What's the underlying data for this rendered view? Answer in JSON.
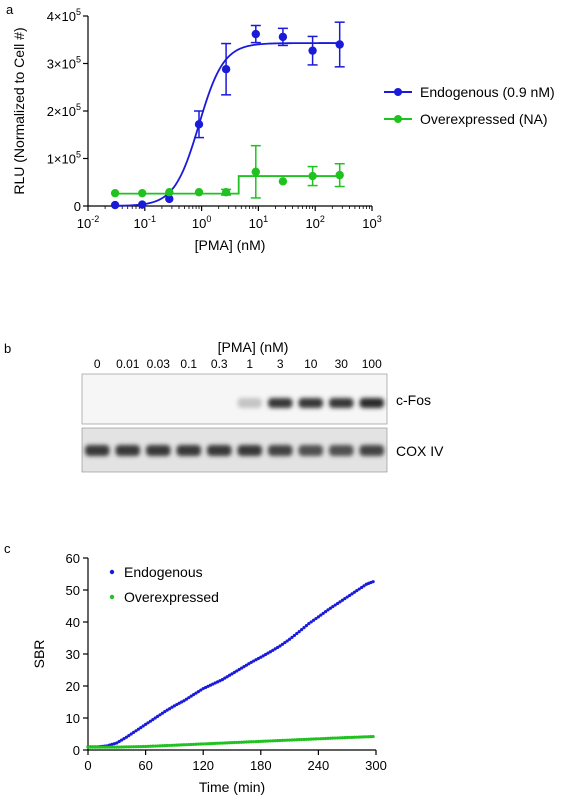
{
  "panels": {
    "a_label": "a",
    "b_label": "b",
    "c_label": "c"
  },
  "chart_data": [
    {
      "id": "panel-a",
      "type": "scatter",
      "xlabel": "[PMA] (nM)",
      "ylabel": "RLU (Normalized to Cell #)",
      "x_scale": "log",
      "xlim": [
        0.01,
        1000
      ],
      "ylim": [
        0,
        400000
      ],
      "x_ticks": [
        {
          "value": 0.01,
          "base": "10",
          "exp": "-2"
        },
        {
          "value": 0.1,
          "base": "10",
          "exp": "-1"
        },
        {
          "value": 1,
          "base": "10",
          "exp": "0"
        },
        {
          "value": 10,
          "base": "10",
          "exp": "1"
        },
        {
          "value": 100,
          "base": "10",
          "exp": "2"
        },
        {
          "value": 1000,
          "base": "10",
          "exp": "3"
        }
      ],
      "y_ticks": [
        {
          "value": 0,
          "mant": "0",
          "exp": ""
        },
        {
          "value": 100000,
          "mant": "1×10",
          "exp": "5"
        },
        {
          "value": 200000,
          "mant": "2×10",
          "exp": "5"
        },
        {
          "value": 300000,
          "mant": "3×10",
          "exp": "5"
        },
        {
          "value": 400000,
          "mant": "4×10",
          "exp": "5"
        }
      ],
      "legend_position": "right",
      "series": [
        {
          "name": "Endogenous (0.9 nM)",
          "color": "#1a1adb",
          "fit": "sigmoid",
          "fit_params": {
            "bottom": 0,
            "top": 343000,
            "ec50": 0.9,
            "hill": 2
          },
          "points": [
            {
              "x": 0.03,
              "y": 2000,
              "err": 0
            },
            {
              "x": 0.09,
              "y": 3000,
              "err": 0
            },
            {
              "x": 0.27,
              "y": 15000,
              "err": 0
            },
            {
              "x": 0.9,
              "y": 172000,
              "err": 28000
            },
            {
              "x": 2.7,
              "y": 288000,
              "err": 54000
            },
            {
              "x": 9,
              "y": 362000,
              "err": 18000
            },
            {
              "x": 27,
              "y": 356000,
              "err": 18000
            },
            {
              "x": 90,
              "y": 327000,
              "err": 30000
            },
            {
              "x": 270,
              "y": 340000,
              "err": 47000
            }
          ]
        },
        {
          "name": "Overexpressed (NA)",
          "color": "#1fc21f",
          "fit": "step",
          "fit_params": {
            "low": 26000,
            "high": 63000,
            "step_x": 4.5
          },
          "points": [
            {
              "x": 0.03,
              "y": 27000,
              "err": 0
            },
            {
              "x": 0.09,
              "y": 27000,
              "err": 0
            },
            {
              "x": 0.27,
              "y": 29000,
              "err": 0
            },
            {
              "x": 0.9,
              "y": 29000,
              "err": 0
            },
            {
              "x": 2.7,
              "y": 29000,
              "err": 6000
            },
            {
              "x": 9,
              "y": 72000,
              "err": 55000
            },
            {
              "x": 27,
              "y": 52000,
              "err": 0
            },
            {
              "x": 90,
              "y": 63000,
              "err": 20000
            },
            {
              "x": 270,
              "y": 65000,
              "err": 24000
            }
          ]
        }
      ]
    },
    {
      "id": "panel-c",
      "type": "scatter",
      "xlabel": "Time (min)",
      "ylabel": "SBR",
      "xlim": [
        0,
        300
      ],
      "ylim": [
        0,
        60
      ],
      "x_ticks": [
        0,
        60,
        120,
        180,
        240,
        300
      ],
      "y_ticks": [
        0,
        10,
        20,
        30,
        40,
        50,
        60
      ],
      "legend_position": "top-left",
      "series": [
        {
          "name": "Endogenous",
          "color": "#1a1adb",
          "points": [
            [
              0,
              1.0
            ],
            [
              10,
              1.0
            ],
            [
              20,
              1.3
            ],
            [
              30,
              2.2
            ],
            [
              40,
              4.0
            ],
            [
              50,
              6.0
            ],
            [
              60,
              8.0
            ],
            [
              70,
              10.0
            ],
            [
              80,
              12.0
            ],
            [
              90,
              13.8
            ],
            [
              100,
              15.4
            ],
            [
              110,
              17.3
            ],
            [
              120,
              19.2
            ],
            [
              130,
              20.6
            ],
            [
              140,
              22.0
            ],
            [
              150,
              23.8
            ],
            [
              160,
              25.6
            ],
            [
              170,
              27.4
            ],
            [
              180,
              29.0
            ],
            [
              190,
              30.7
            ],
            [
              200,
              32.5
            ],
            [
              210,
              34.6
            ],
            [
              220,
              37.0
            ],
            [
              230,
              39.5
            ],
            [
              240,
              41.6
            ],
            [
              250,
              43.8
            ],
            [
              260,
              45.8
            ],
            [
              270,
              47.8
            ],
            [
              280,
              49.8
            ],
            [
              290,
              51.8
            ],
            [
              297,
              52.6
            ]
          ]
        },
        {
          "name": "Overexpressed",
          "color": "#1fc21f",
          "points": [
            [
              0,
              0.9
            ],
            [
              30,
              0.9
            ],
            [
              60,
              1.1
            ],
            [
              90,
              1.5
            ],
            [
              120,
              1.9
            ],
            [
              150,
              2.3
            ],
            [
              180,
              2.7
            ],
            [
              210,
              3.1
            ],
            [
              240,
              3.5
            ],
            [
              270,
              3.9
            ],
            [
              297,
              4.2
            ]
          ]
        }
      ]
    }
  ],
  "blot": {
    "title": "[PMA] (nM)",
    "lanes": [
      "0",
      "0.01",
      "0.03",
      "0.1",
      "0.3",
      "1",
      "3",
      "10",
      "30",
      "100"
    ],
    "rows": [
      {
        "label": "c-Fos",
        "intensities": [
          0.0,
          0.0,
          0.0,
          0.0,
          0.0,
          0.25,
          0.85,
          0.85,
          0.85,
          0.9
        ]
      },
      {
        "label": "COX IV",
        "intensities": [
          0.85,
          0.85,
          0.85,
          0.85,
          0.85,
          0.85,
          0.8,
          0.75,
          0.75,
          0.8
        ]
      }
    ]
  }
}
